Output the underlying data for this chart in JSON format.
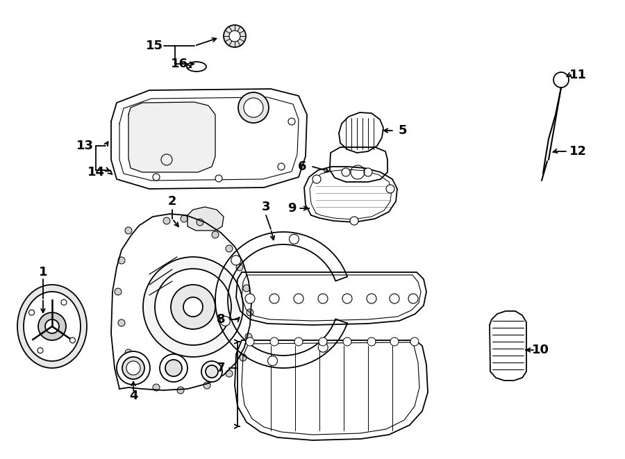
{
  "background_color": "#ffffff",
  "line_color": "#000000",
  "figsize": [
    9.0,
    6.61
  ],
  "dpi": 100,
  "lw": 1.3,
  "label_fontsize": 13,
  "label_fontweight": "bold"
}
